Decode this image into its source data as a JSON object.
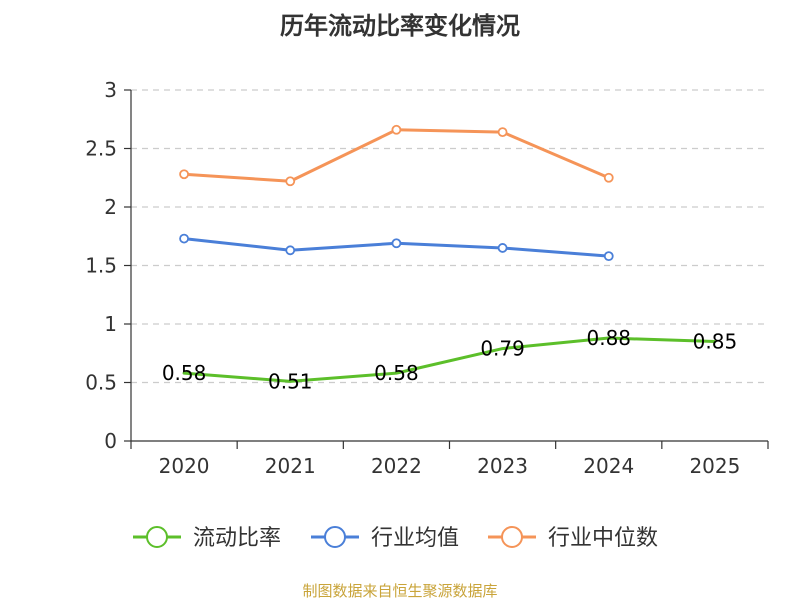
{
  "chart_data": {
    "type": "line",
    "title": "历年流动比率变化情况",
    "categories": [
      "2020",
      "2021",
      "2022",
      "2023",
      "2024",
      "2025"
    ],
    "ylim": [
      0,
      3
    ],
    "yticks": [
      0,
      0.5,
      1,
      1.5,
      2,
      2.5,
      3
    ],
    "ytick_labels": [
      "0",
      "0.5",
      "1",
      "1.5",
      "2",
      "2.5",
      "3"
    ],
    "grid": true,
    "legend_position": "bottom",
    "series": [
      {
        "name": "流动比率",
        "color": "#5cbf2a",
        "values": [
          0.58,
          0.51,
          0.58,
          0.79,
          0.88,
          0.85
        ],
        "labels": [
          "0.58",
          "0.51",
          "0.58",
          "0.79",
          "0.88",
          "0.85"
        ]
      },
      {
        "name": "行业均值",
        "color": "#4a7fd8",
        "values": [
          1.73,
          1.63,
          1.69,
          1.65,
          1.58,
          null
        ]
      },
      {
        "name": "行业中位数",
        "color": "#f59458",
        "values": [
          2.28,
          2.22,
          2.66,
          2.64,
          2.25,
          null
        ]
      }
    ],
    "source": "制图数据来自恒生聚源数据库"
  }
}
